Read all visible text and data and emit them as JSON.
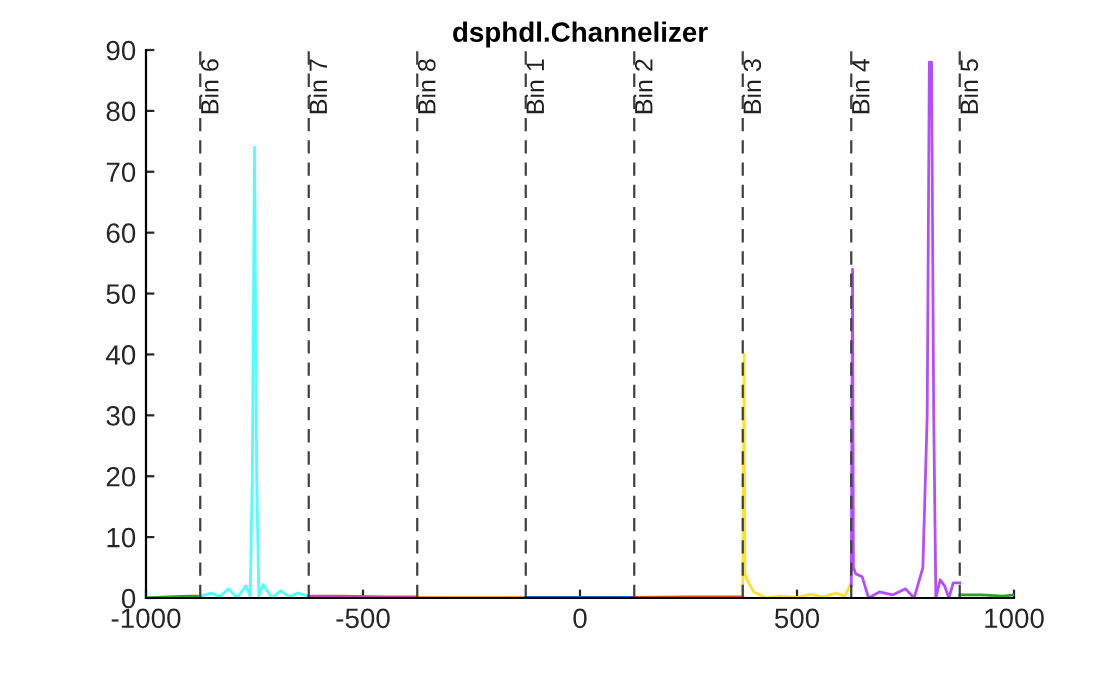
{
  "chart_data": {
    "type": "line",
    "title": "dsphdl.Channelizer",
    "series": [
      {
        "color": "#2ca02c",
        "x": [
          -1000,
          -950,
          -900,
          -875
        ],
        "values": [
          0,
          0.2,
          0.3,
          0.3
        ]
      },
      {
        "color": "#4dffff",
        "x": [
          -875,
          -850,
          -830,
          -810,
          -790,
          -770,
          -760,
          -755,
          -750,
          -745,
          -740,
          -730,
          -710,
          -690,
          -670,
          -650,
          -625
        ],
        "values": [
          0.3,
          0.8,
          0.2,
          1.5,
          0,
          2.0,
          0.3,
          20,
          74,
          20,
          0.3,
          2.2,
          0,
          1.2,
          0.2,
          0.8,
          0.3
        ]
      },
      {
        "color": "#cc44aa",
        "x": [
          -625,
          -550,
          -450,
          -375
        ],
        "values": [
          0.3,
          0.3,
          0.2,
          0.2
        ]
      },
      {
        "color": "#e8a030",
        "x": [
          -375,
          -250,
          -125
        ],
        "values": [
          0.1,
          0.1,
          0.1
        ]
      },
      {
        "color": "#1f6fd4",
        "x": [
          -125,
          0,
          125
        ],
        "values": [
          0.1,
          0.1,
          0.1
        ]
      },
      {
        "color": "#d95319",
        "x": [
          125,
          250,
          375
        ],
        "values": [
          0.1,
          0.2,
          0.2
        ]
      },
      {
        "color": "#ffe030",
        "x": [
          375,
          378,
          380,
          385,
          400,
          430,
          460,
          500,
          530,
          560,
          590,
          610,
          625
        ],
        "values": [
          0.5,
          40,
          4,
          3,
          1,
          0,
          0.3,
          0.1,
          0.6,
          0.2,
          0.8,
          0.3,
          2.5
        ]
      },
      {
        "color": "#b44dff",
        "x": [
          625,
          628,
          630,
          635,
          650,
          665,
          690,
          720,
          750,
          770,
          790,
          800,
          805,
          810,
          815,
          820,
          830,
          840,
          850,
          860,
          875
        ],
        "values": [
          2,
          54,
          5,
          4,
          3.5,
          0,
          1,
          0.5,
          1.5,
          0,
          5,
          30,
          88,
          88,
          30,
          0,
          3,
          2,
          0,
          2.5,
          2.5
        ]
      },
      {
        "color": "#2ca02c",
        "x": [
          875,
          925,
          975,
          1000
        ],
        "values": [
          0.5,
          0.5,
          0.3,
          0.5
        ]
      }
    ],
    "ref_lines": [
      {
        "axis": "x",
        "value": -875,
        "label": "Bin 6",
        "color": "#404040",
        "line_style": "dashed"
      },
      {
        "axis": "x",
        "value": -625,
        "label": "Bin 7",
        "color": "#404040",
        "line_style": "dashed"
      },
      {
        "axis": "x",
        "value": -375,
        "label": "Bin 8",
        "color": "#404040",
        "line_style": "dashed"
      },
      {
        "axis": "x",
        "value": -125,
        "label": "Bin 1",
        "color": "#404040",
        "line_style": "dashed"
      },
      {
        "axis": "x",
        "value": 125,
        "label": "Bin 2",
        "color": "#404040",
        "line_style": "dashed"
      },
      {
        "axis": "x",
        "value": 375,
        "label": "Bin 3",
        "color": "#404040",
        "line_style": "dashed"
      },
      {
        "axis": "x",
        "value": 625,
        "label": "Bin 4",
        "color": "#404040",
        "line_style": "dashed"
      },
      {
        "axis": "x",
        "value": 875,
        "label": "Bin 5",
        "color": "#404040",
        "line_style": "dashed"
      }
    ],
    "xlim": [
      -1000,
      1000
    ],
    "xticks": [
      -1000,
      -500,
      0,
      500,
      1000
    ],
    "ylim": [
      0,
      90
    ],
    "yticks": [
      0,
      10,
      20,
      30,
      40,
      50,
      60,
      70,
      80,
      90
    ],
    "grid": false,
    "marker": "none",
    "line_style": "solid"
  }
}
